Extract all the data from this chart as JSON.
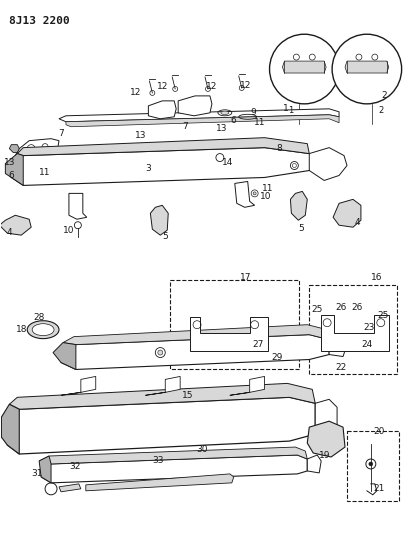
{
  "title": "8J13 2200",
  "bg_color": "#ffffff",
  "line_color": "#1a1a1a",
  "gray_fill": "#b0b0b0",
  "light_gray": "#d8d8d8",
  "dpi": 100,
  "figw": 4.06,
  "figh": 5.33
}
